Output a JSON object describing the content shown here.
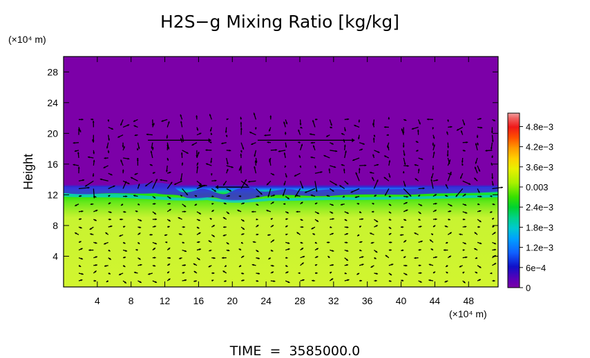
{
  "chart_data": {
    "type": "heatmap",
    "title": "H2S−g Mixing Ratio [kg/kg]",
    "ylabel": "Height",
    "y_unit_label": "(×10⁴ m)",
    "x_unit_label": "(×10⁴ m)",
    "xlim": [
      0,
      51.5
    ],
    "ylim": [
      0,
      30
    ],
    "x_ticks": [
      4,
      8,
      12,
      16,
      20,
      24,
      28,
      32,
      36,
      40,
      44,
      48
    ],
    "y_ticks": [
      4,
      8,
      12,
      16,
      20,
      24,
      28
    ],
    "x_tick_labels": [
      "4",
      "8",
      "12",
      "16",
      "20",
      "24",
      "28",
      "32",
      "36",
      "40",
      "44",
      "48"
    ],
    "y_tick_labels": [
      "4",
      "8",
      "12",
      "16",
      "20",
      "24",
      "28"
    ],
    "colorbar": {
      "range": [
        0,
        0.0052
      ],
      "tick_values": [
        0,
        0.0006,
        0.0012,
        0.0018,
        0.0024,
        0.003,
        0.0036,
        0.0042,
        0.0048
      ],
      "tick_labels": [
        "0",
        "6e−4",
        "1.2e−3",
        "1.8e−3",
        "2.4e−3",
        "0.003",
        "3.6e−3",
        "4.2e−3",
        "4.8e−3"
      ]
    },
    "profile": [
      {
        "height": 0,
        "value": 0.0033
      },
      {
        "height": 9,
        "value": 0.0033
      },
      {
        "height": 10,
        "value": 0.003
      },
      {
        "height": 11,
        "value": 0.0027
      },
      {
        "height": 12,
        "value": 0.0024
      },
      {
        "height": 12.7,
        "value": 0.0009
      },
      {
        "height": 13.3,
        "value": 0.0
      },
      {
        "height": 30,
        "value": 0.0
      }
    ],
    "interface_height": 12.9,
    "upper_layer_value": 0.0,
    "wind_vectors": "quiver field overlay"
  },
  "footer": {
    "time_label": "TIME  =  3585000.0"
  },
  "colors": {
    "purple": "#7c00a8",
    "yellow_green": "#ccf533",
    "green": "#25e800",
    "vector": "#000000"
  }
}
